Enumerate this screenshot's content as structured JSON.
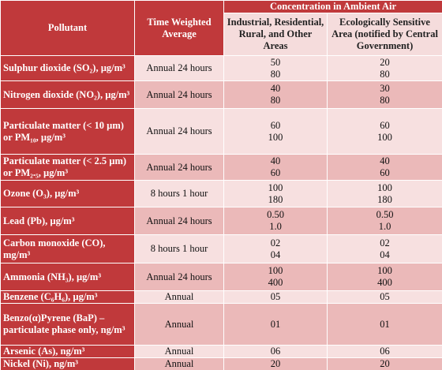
{
  "table": {
    "header": {
      "pollutant": "Pollutant",
      "time": "Time Weighted Average",
      "group": "Concentration in Ambient Air",
      "industrial": "Industrial, Residential, Rural, and Other Areas",
      "ecological": "Ecologically Sensitive Area (notified by Central Government)"
    },
    "rows": [
      {
        "pollutant": "Sulphur dioxide (SO₂), µg/m³",
        "time": "Annual 24 hours",
        "industrial": [
          "50",
          "80"
        ],
        "ecological": [
          "20",
          "80"
        ]
      },
      {
        "pollutant": "Nitrogen dioxide (NO₂), µg/m³",
        "time": "Annual 24 hours",
        "industrial": [
          "40",
          "80"
        ],
        "ecological": [
          "30",
          "80"
        ]
      },
      {
        "pollutant": "Particulate matter (< 10 µm) or PM₁₀, µg/m³",
        "time": "Annual 24 hours",
        "industrial": [
          "60",
          "100"
        ],
        "ecological": [
          "60",
          "100"
        ]
      },
      {
        "pollutant": "Particulate matter (< 2.5 µm) or PM₂.₅, µg/m³",
        "time": "Annual 24 hours",
        "industrial": [
          "40",
          "60"
        ],
        "ecological": [
          "40",
          "60"
        ]
      },
      {
        "pollutant": "Ozone (O₃), µg/m³",
        "time": "8 hours 1 hour",
        "industrial": [
          "100",
          "180"
        ],
        "ecological": [
          "100",
          "180"
        ]
      },
      {
        "pollutant": "Lead (Pb), µg/m³",
        "time": "Annual 24 hours",
        "industrial": [
          "0.50",
          "1.0"
        ],
        "ecological": [
          "0.50",
          "1.0"
        ]
      },
      {
        "pollutant": "Carbon monoxide (CO), mg/m³",
        "time": "8 hours 1 hour",
        "industrial": [
          "02",
          "04"
        ],
        "ecological": [
          "02",
          "04"
        ]
      },
      {
        "pollutant": "Ammonia (NH₃), µg/m³",
        "time": "Annual 24 hours",
        "industrial": [
          "100",
          "400"
        ],
        "ecological": [
          "100",
          "400"
        ]
      },
      {
        "pollutant": "Benzene (C₆H₆), µg/m³",
        "time": "Annual",
        "industrial": [
          "05"
        ],
        "ecological": [
          "05"
        ]
      },
      {
        "pollutant": "Benzo(α)Pyrene (BaP) – particulate phase only, ng/m³",
        "time": "Annual",
        "industrial": [
          "01"
        ],
        "ecological": [
          "01"
        ]
      },
      {
        "pollutant": "Arsenic (As), ng/m³",
        "time": "Annual",
        "industrial": [
          "06"
        ],
        "ecological": [
          "06"
        ]
      },
      {
        "pollutant": "Nickel (Ni), ng/m³",
        "time": "Annual",
        "industrial": [
          "20"
        ],
        "ecological": [
          "20"
        ]
      }
    ]
  }
}
